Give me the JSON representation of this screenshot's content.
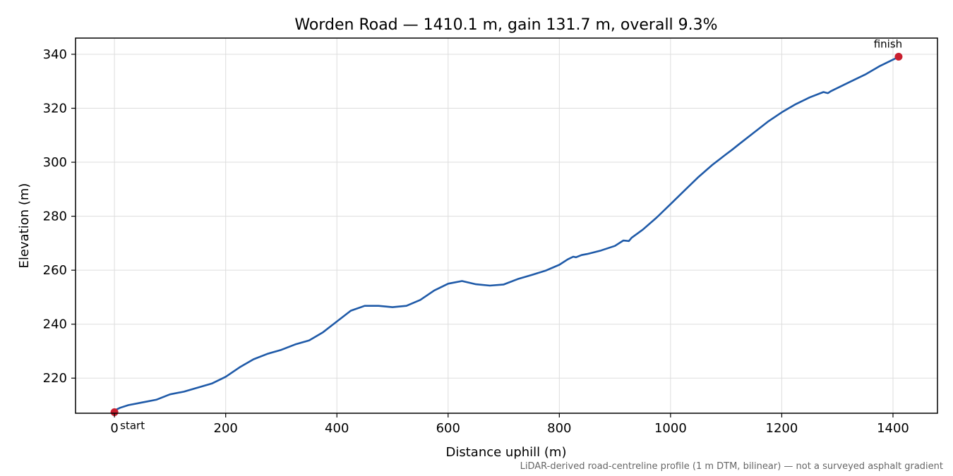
{
  "chart_data": {
    "type": "line",
    "title": "Worden Road — 1410.1 m, gain 131.7 m, overall 9.3%",
    "xlabel": "Distance uphill (m)",
    "ylabel": "Elevation (m)",
    "footnote": "LiDAR-derived road-centreline profile (1 m DTM, bilinear) — not a surveyed asphalt gradient",
    "xlim": [
      -70,
      1480
    ],
    "ylim": [
      207,
      346
    ],
    "x_ticks": [
      0,
      200,
      400,
      600,
      800,
      1000,
      1200,
      1400
    ],
    "y_ticks": [
      220,
      240,
      260,
      280,
      300,
      320,
      340
    ],
    "grid": true,
    "line_color": "#1f5aa8",
    "marker_color": "#c81e2e",
    "series": [
      {
        "x": [
          0,
          10,
          25,
          50,
          75,
          100,
          125,
          150,
          175,
          200,
          225,
          250,
          275,
          300,
          325,
          350,
          375,
          400,
          425,
          450,
          475,
          500,
          525,
          550,
          575,
          600,
          625,
          650,
          675,
          700,
          725,
          750,
          775,
          800,
          815,
          825,
          830,
          840,
          850,
          875,
          900,
          915,
          925,
          930,
          950,
          975,
          1000,
          1025,
          1050,
          1075,
          1100,
          1110,
          1125,
          1150,
          1175,
          1200,
          1225,
          1250,
          1275,
          1283,
          1288,
          1300,
          1325,
          1350,
          1375,
          1400,
          1410
        ],
        "y": [
          208,
          209,
          210,
          211,
          212,
          214,
          215,
          216.5,
          218,
          220.5,
          224,
          227,
          229,
          230.5,
          232.5,
          234,
          237,
          241,
          245,
          246.8,
          246.8,
          246.3,
          246.8,
          249,
          252.5,
          255,
          256,
          254.8,
          254.3,
          254.7,
          256.7,
          258.2,
          259.8,
          262,
          264,
          265,
          264.8,
          265.6,
          266,
          267.3,
          269,
          271,
          270.8,
          272,
          275,
          279.5,
          284.5,
          289.5,
          294.5,
          299,
          303,
          304.5,
          307,
          311,
          315,
          318.5,
          321.5,
          324,
          326,
          325.6,
          326.3,
          327.5,
          330,
          332.5,
          335.5,
          338,
          339
        ]
      }
    ],
    "annotations": [
      {
        "text": "start",
        "x": 0,
        "y": 207.4,
        "color": "#c81e2e"
      },
      {
        "text": "finish",
        "x": 1410.1,
        "y": 339.1,
        "color": "#c81e2e"
      }
    ]
  }
}
